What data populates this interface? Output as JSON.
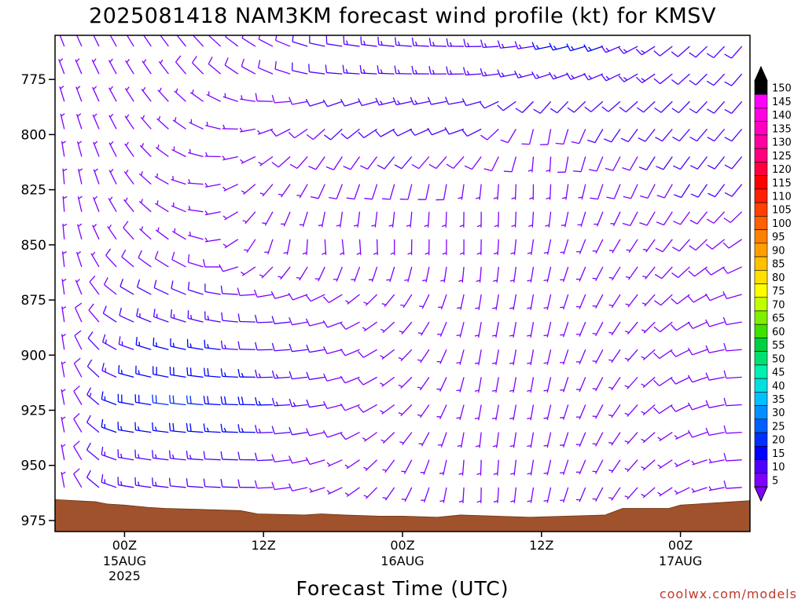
{
  "chart_data": {
    "type": "wind-barb time-height",
    "title": "2025081418 NAM3KM forecast wind profile (kt) for KMSV",
    "xlabel": "Forecast Time (UTC)",
    "ylabel": "",
    "ylim": [
      980,
      755
    ],
    "y_ticks": [
      775,
      800,
      825,
      850,
      875,
      900,
      925,
      950,
      975
    ],
    "x_range_hours_from_start": [
      0,
      60
    ],
    "x_ticks": [
      {
        "hour": 6,
        "label": "00Z",
        "sub": "15AUG",
        "sub2": "2025"
      },
      {
        "hour": 18,
        "label": "12Z",
        "sub": "",
        "sub2": ""
      },
      {
        "hour": 30,
        "label": "00Z",
        "sub": "16AUG",
        "sub2": ""
      },
      {
        "hour": 42,
        "label": "12Z",
        "sub": "",
        "sub2": ""
      },
      {
        "hour": 54,
        "label": "00Z",
        "sub": "17AUG",
        "sub2": ""
      }
    ],
    "colorbar": {
      "levels": [
        5,
        10,
        15,
        20,
        25,
        30,
        35,
        40,
        45,
        50,
        55,
        60,
        65,
        70,
        75,
        80,
        85,
        90,
        95,
        100,
        105,
        110,
        115,
        120,
        125,
        130,
        135,
        140,
        145,
        150
      ],
      "colors": [
        "#8000ff",
        "#5000ff",
        "#0000ff",
        "#0030ff",
        "#0060ff",
        "#0090ff",
        "#00c0ff",
        "#00e0e0",
        "#00f0b0",
        "#00e070",
        "#00d040",
        "#40e000",
        "#80f000",
        "#c0ff00",
        "#ffff00",
        "#ffe000",
        "#ffc000",
        "#ffa000",
        "#ff8000",
        "#ff6000",
        "#ff4000",
        "#ff2000",
        "#ff0000",
        "#ff0040",
        "#ff0080",
        "#ff00a0",
        "#ff00c0",
        "#ff00e0",
        "#ff00ff",
        "#000000"
      ]
    },
    "terrain": {
      "color": "#a0522d",
      "surface_pressure_by_hour": [
        [
          0,
          965.5
        ],
        [
          3.5,
          966.5
        ],
        [
          4.5,
          967.5
        ],
        [
          6,
          968
        ],
        [
          8,
          969
        ],
        [
          9.5,
          969.5
        ],
        [
          16,
          970.5
        ],
        [
          17.5,
          972
        ],
        [
          21.5,
          972.5
        ],
        [
          23,
          972
        ],
        [
          25,
          972.5
        ],
        [
          28,
          973
        ],
        [
          30,
          973
        ],
        [
          33,
          973.5
        ],
        [
          35,
          972.5
        ],
        [
          41,
          973.5
        ],
        [
          47.5,
          972.5
        ],
        [
          49,
          969.5
        ],
        [
          53,
          969.5
        ],
        [
          54,
          968
        ],
        [
          60,
          966
        ]
      ]
    },
    "winds": [
      {
        "p": 770,
        "hours": [
          0,
          6,
          12,
          18,
          24,
          30,
          36,
          42,
          48,
          54,
          60
        ],
        "speed_kt": [
          5,
          6,
          8,
          8,
          12,
          14,
          14,
          15,
          15,
          12,
          10
        ],
        "dir_deg": [
          340,
          330,
          320,
          300,
          280,
          275,
          270,
          260,
          250,
          230,
          220
        ]
      },
      {
        "p": 800,
        "hours": [
          0,
          6,
          12,
          18,
          24,
          30,
          36,
          42,
          48,
          54,
          60
        ],
        "speed_kt": [
          5,
          6,
          6,
          7,
          10,
          12,
          10,
          8,
          10,
          12,
          10
        ],
        "dir_deg": [
          350,
          330,
          300,
          250,
          220,
          240,
          250,
          180,
          210,
          220,
          220
        ]
      },
      {
        "p": 825,
        "hours": [
          0,
          6,
          12,
          18,
          24,
          30,
          36,
          42,
          48,
          54,
          60
        ],
        "speed_kt": [
          5,
          6,
          5,
          6,
          8,
          8,
          7,
          6,
          8,
          10,
          10
        ],
        "dir_deg": [
          0,
          330,
          280,
          220,
          200,
          190,
          180,
          180,
          200,
          210,
          220
        ]
      },
      {
        "p": 850,
        "hours": [
          0,
          6,
          12,
          18,
          24,
          30,
          36,
          42,
          48,
          54,
          60
        ],
        "speed_kt": [
          5,
          8,
          7,
          5,
          6,
          6,
          5,
          5,
          6,
          8,
          10
        ],
        "dir_deg": [
          0,
          320,
          300,
          200,
          170,
          180,
          180,
          190,
          210,
          220,
          240
        ]
      },
      {
        "p": 875,
        "hours": [
          0,
          6,
          12,
          18,
          24,
          30,
          36,
          42,
          48,
          54,
          60
        ],
        "speed_kt": [
          5,
          10,
          12,
          10,
          8,
          6,
          5,
          5,
          6,
          8,
          10
        ],
        "dir_deg": [
          0,
          300,
          290,
          270,
          250,
          220,
          190,
          190,
          210,
          230,
          260
        ]
      },
      {
        "p": 900,
        "hours": [
          0,
          6,
          12,
          18,
          24,
          30,
          36,
          42,
          48,
          54,
          60
        ],
        "speed_kt": [
          5,
          14,
          18,
          12,
          10,
          7,
          5,
          5,
          6,
          8,
          10
        ],
        "dir_deg": [
          0,
          290,
          280,
          270,
          260,
          230,
          190,
          190,
          210,
          240,
          270
        ]
      },
      {
        "p": 925,
        "hours": [
          0,
          6,
          12,
          18,
          24,
          30,
          36,
          42,
          48,
          54,
          60
        ],
        "speed_kt": [
          5,
          18,
          22,
          18,
          10,
          6,
          5,
          5,
          6,
          8,
          10
        ],
        "dir_deg": [
          0,
          280,
          275,
          270,
          260,
          230,
          190,
          190,
          210,
          240,
          270
        ]
      },
      {
        "p": 950,
        "hours": [
          0,
          6,
          12,
          18,
          24,
          30,
          36,
          42,
          48,
          54,
          60
        ],
        "speed_kt": [
          5,
          14,
          12,
          10,
          7,
          5,
          5,
          5,
          5,
          6,
          8
        ],
        "dir_deg": [
          0,
          280,
          275,
          270,
          250,
          210,
          180,
          190,
          210,
          240,
          270
        ]
      }
    ]
  },
  "credit": "coolwx.com/models"
}
